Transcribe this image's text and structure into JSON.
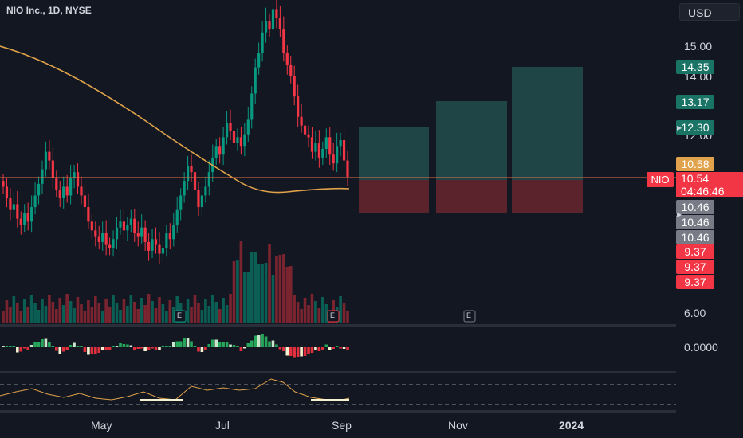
{
  "header": {
    "symbol": "NIO Inc., 1D, NYSE",
    "currency": "USD"
  },
  "price_axis": {
    "ticks": [
      "15.00",
      "14.00",
      "12.00",
      "6.00"
    ],
    "target_labels": [
      "14.35",
      "13.17",
      "12.30"
    ],
    "ma_value": "10.58",
    "ticker": "NIO",
    "last_price": "10.54",
    "countdown": "04:46:46",
    "entry_labels": [
      "10.46",
      "10.46",
      "10.46"
    ],
    "stop_labels": [
      "9.37",
      "9.37",
      "9.37"
    ]
  },
  "oscillator": {
    "zero_label": "0.0000"
  },
  "time_axis": {
    "labels": [
      "May",
      "Jul",
      "Sep",
      "Nov",
      "2024"
    ]
  },
  "earnings_markers": [
    "E",
    "E",
    "E"
  ],
  "colors": {
    "background": "#131722",
    "up": "#089981",
    "down": "#f23645",
    "ma": "#e0a24a",
    "target_zone": "#2a6b66",
    "stop_zone": "#7a2a31",
    "grey_label": "#787b86"
  },
  "chart_data": {
    "type": "candlestick",
    "title": "NIO Inc., 1D, NYSE",
    "close": [
      10.2,
      9.8,
      9.4,
      9.6,
      9.1,
      8.9,
      9.3,
      9.0,
      9.5,
      9.9,
      10.3,
      10.8,
      11.4,
      11.1,
      10.5,
      10.1,
      9.8,
      10.2,
      9.9,
      10.5,
      10.7,
      10.2,
      9.9,
      9.5,
      9.0,
      8.7,
      8.5,
      8.3,
      8.6,
      8.2,
      8.1,
      8.4,
      8.8,
      9.0,
      8.7,
      8.9,
      9.1,
      8.6,
      8.5,
      8.8,
      8.3,
      8.0,
      8.4,
      8.2,
      7.9,
      8.1,
      8.6,
      8.4,
      8.9,
      9.4,
      9.9,
      10.4,
      10.9,
      10.7,
      10.1,
      9.5,
      9.9,
      10.2,
      10.7,
      11.2,
      11.6,
      11.3,
      11.9,
      12.4,
      12.1,
      11.7,
      11.9,
      11.6,
      12.0,
      12.5,
      13.4,
      14.3,
      14.8,
      15.5,
      15.9,
      15.6,
      16.3,
      16.0,
      15.6,
      14.8,
      14.4,
      14.0,
      13.3,
      12.6,
      12.3,
      12.0,
      11.9,
      11.4,
      11.7,
      11.2,
      11.5,
      11.9,
      11.3,
      11.0,
      11.6,
      11.8,
      11.1,
      10.54
    ],
    "moving_average": "200-day line near 10.58",
    "volume_bars": "daily volume histogram at bottom of price pane",
    "position_zones": [
      {
        "entry": 10.46,
        "stop": 9.37,
        "target": 12.3
      },
      {
        "entry": 10.46,
        "stop": 9.37,
        "target": 13.17
      },
      {
        "entry": 10.46,
        "stop": 9.37,
        "target": 14.35
      }
    ],
    "y_ticks": [
      6.0,
      12.0,
      14.0,
      15.0
    ],
    "x_labels": [
      "May",
      "Jul",
      "Sep",
      "Nov",
      "2024"
    ]
  }
}
